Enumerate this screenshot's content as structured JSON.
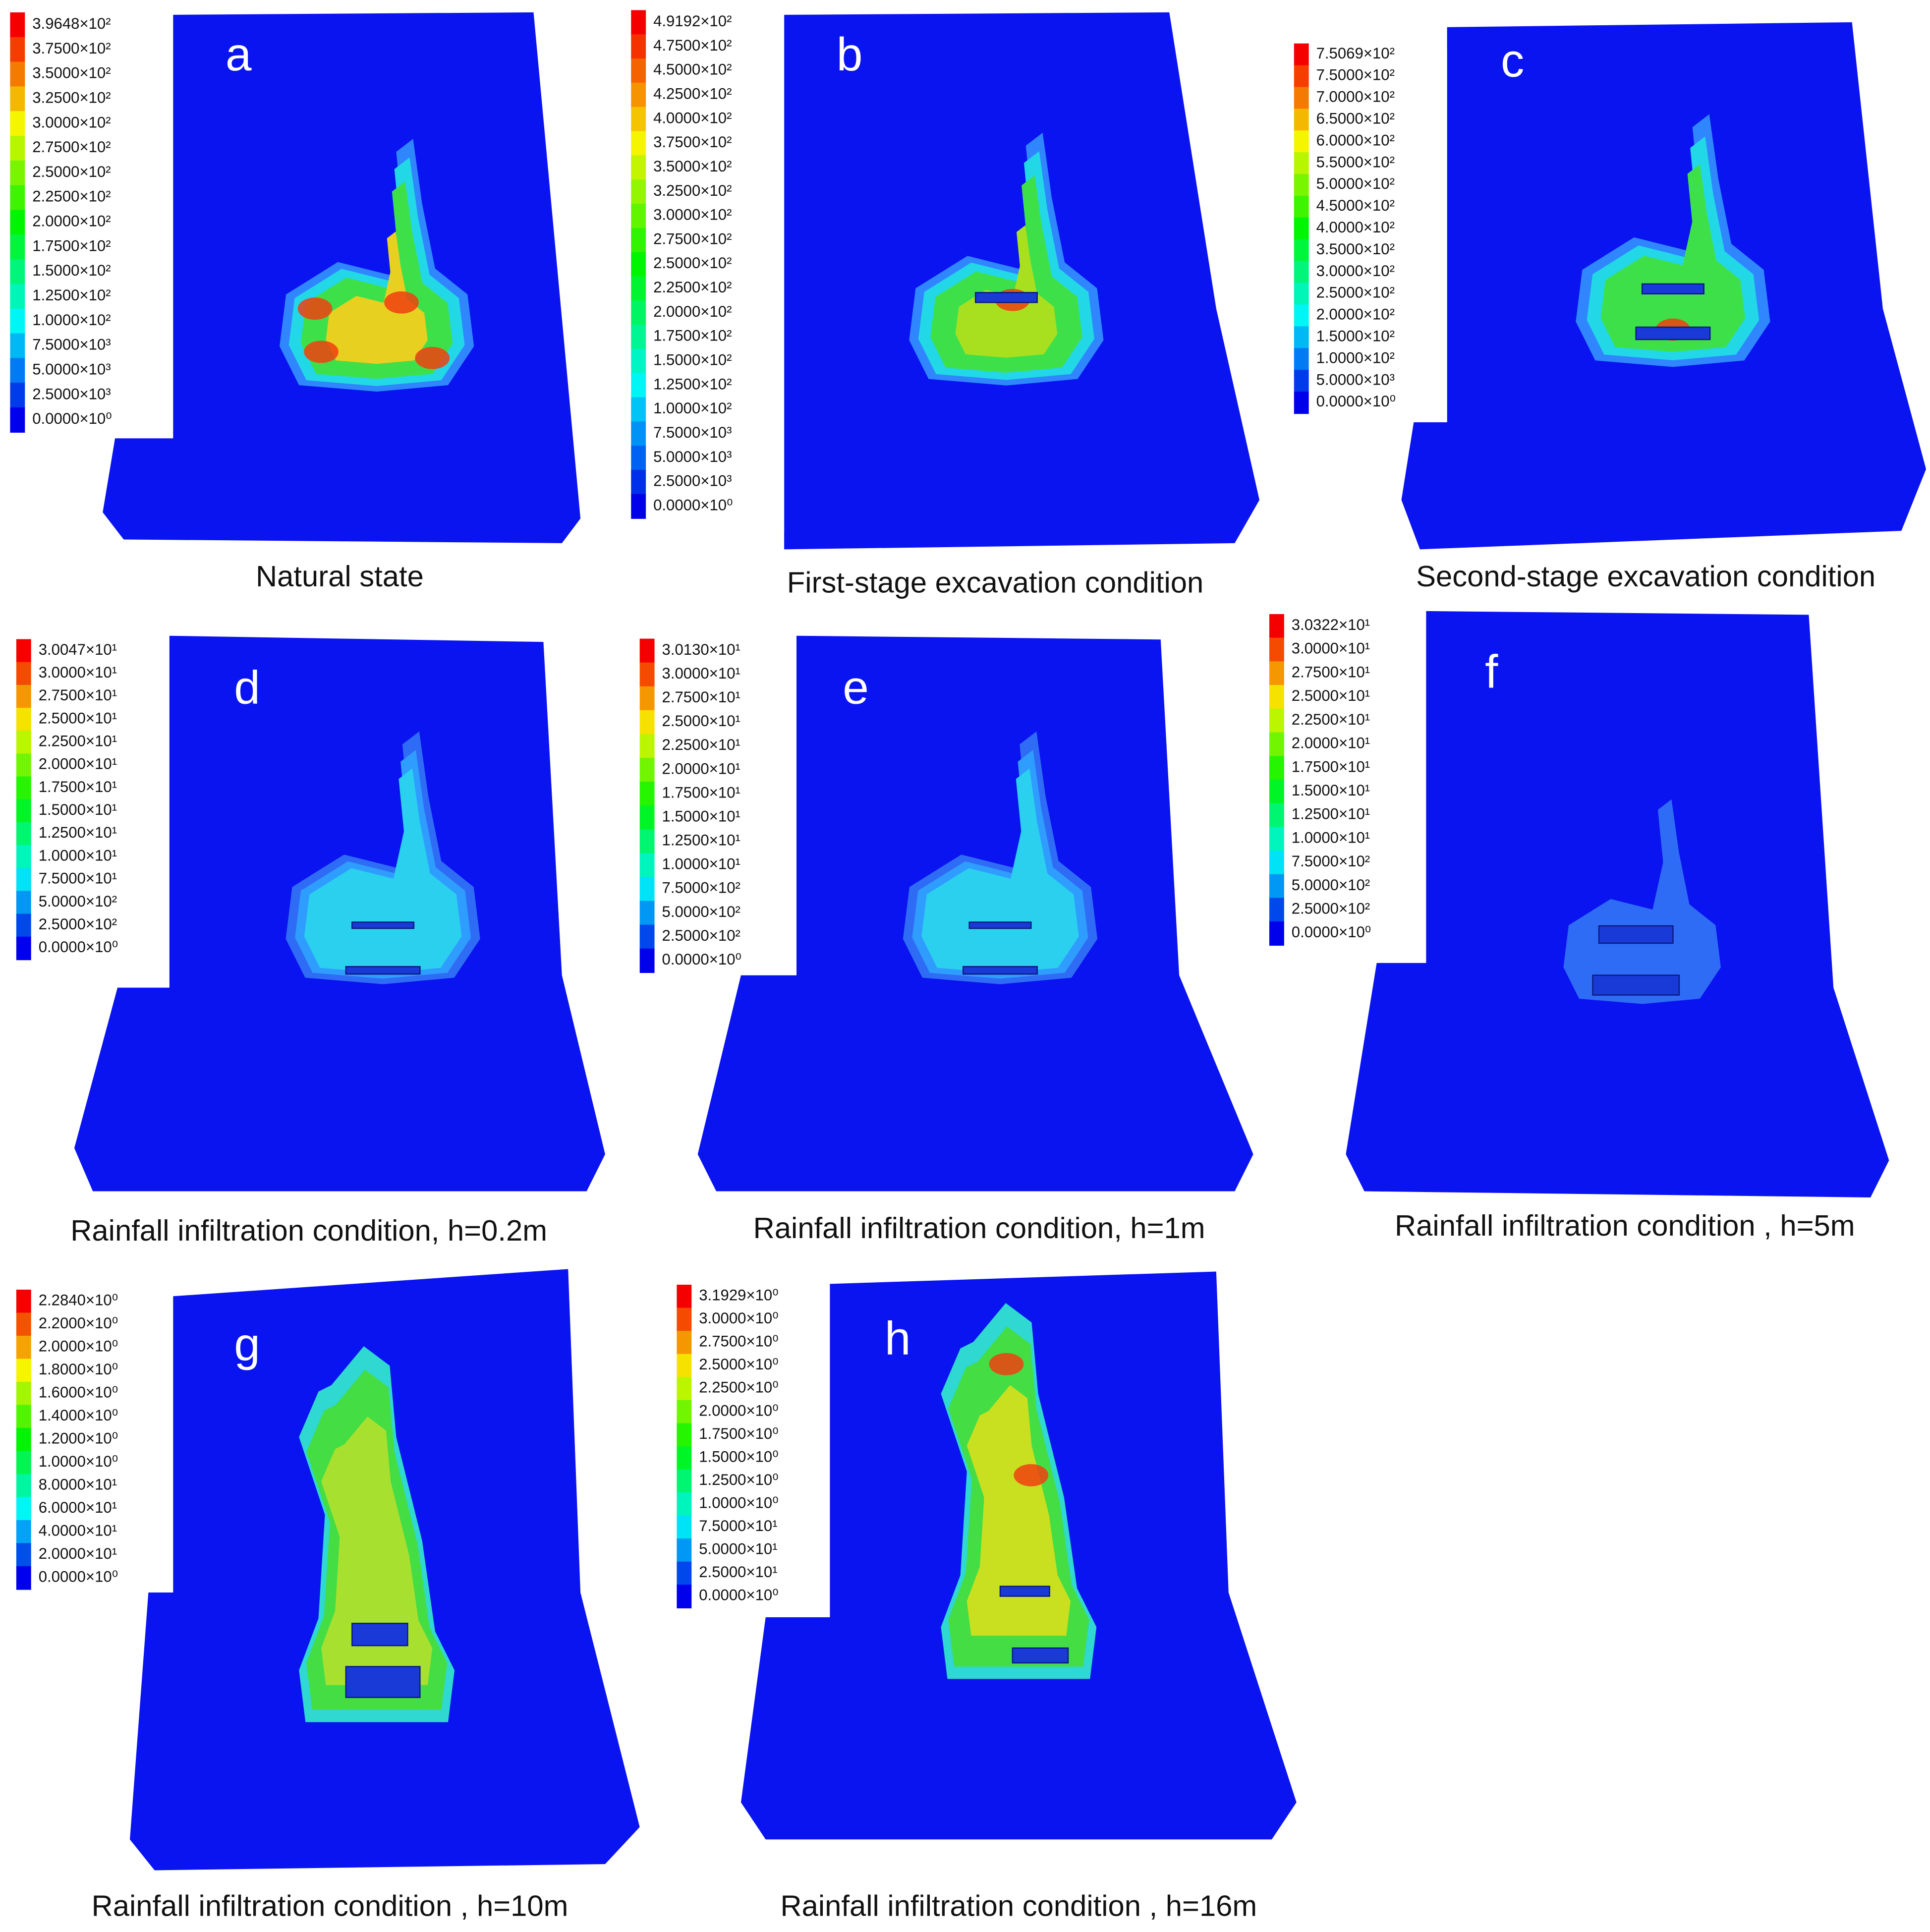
{
  "panels": [
    {
      "letter": "a",
      "caption": "Natural state",
      "legend": [
        "3.9648×10²",
        "3.7500×10²",
        "3.5000×10²",
        "3.2500×10²",
        "3.0000×10²",
        "2.7500×10²",
        "2.5000×10²",
        "2.2500×10²",
        "2.0000×10²",
        "1.7500×10²",
        "1.5000×10²",
        "1.2500×10²",
        "1.0000×10²",
        "7.5000×10³",
        "5.0000×10³",
        "2.5000×10³",
        "0.0000×10⁰"
      ]
    },
    {
      "letter": "b",
      "caption": "First-stage excavation condition",
      "legend": [
        "4.9192×10²",
        "4.7500×10²",
        "4.5000×10²",
        "4.2500×10²",
        "4.0000×10²",
        "3.7500×10²",
        "3.5000×10²",
        "3.2500×10²",
        "3.0000×10²",
        "2.7500×10²",
        "2.5000×10²",
        "2.2500×10²",
        "2.0000×10²",
        "1.7500×10²",
        "1.5000×10²",
        "1.2500×10²",
        "1.0000×10²",
        "7.5000×10³",
        "5.0000×10³",
        "2.5000×10³",
        "0.0000×10⁰"
      ]
    },
    {
      "letter": "c",
      "caption": "Second-stage excavation condition",
      "legend": [
        "7.5069×10²",
        "7.5000×10²",
        "7.0000×10²",
        "6.5000×10²",
        "6.0000×10²",
        "5.5000×10²",
        "5.0000×10²",
        "4.5000×10²",
        "4.0000×10²",
        "3.5000×10²",
        "3.0000×10²",
        "2.5000×10²",
        "2.0000×10²",
        "1.5000×10²",
        "1.0000×10²",
        "5.0000×10³",
        "0.0000×10⁰"
      ]
    },
    {
      "letter": "d",
      "caption": "Rainfall infiltration condition, h=0.2m",
      "legend": [
        "3.0047×10¹",
        "3.0000×10¹",
        "2.7500×10¹",
        "2.5000×10¹",
        "2.2500×10¹",
        "2.0000×10¹",
        "1.7500×10¹",
        "1.5000×10¹",
        "1.2500×10¹",
        "1.0000×10¹",
        "7.5000×10¹",
        "5.0000×10²",
        "2.5000×10²",
        "0.0000×10⁰"
      ]
    },
    {
      "letter": "e",
      "caption": "Rainfall infiltration condition, h=1m",
      "legend": [
        "3.0130×10¹",
        "3.0000×10¹",
        "2.7500×10¹",
        "2.5000×10¹",
        "2.2500×10¹",
        "2.0000×10¹",
        "1.7500×10¹",
        "1.5000×10¹",
        "1.2500×10¹",
        "1.0000×10¹",
        "7.5000×10²",
        "5.0000×10²",
        "2.5000×10²",
        "0.0000×10⁰"
      ]
    },
    {
      "letter": "f",
      "caption": "Rainfall infiltration condition , h=5m",
      "legend": [
        "3.0322×10¹",
        "3.0000×10¹",
        "2.7500×10¹",
        "2.5000×10¹",
        "2.2500×10¹",
        "2.0000×10¹",
        "1.7500×10¹",
        "1.5000×10¹",
        "1.2500×10¹",
        "1.0000×10¹",
        "7.5000×10²",
        "5.0000×10²",
        "2.5000×10²",
        "0.0000×10⁰"
      ]
    },
    {
      "letter": "g",
      "caption": "Rainfall infiltration condition , h=10m",
      "legend": [
        "2.2840×10⁰",
        "2.2000×10⁰",
        "2.0000×10⁰",
        "1.8000×10⁰",
        "1.6000×10⁰",
        "1.4000×10⁰",
        "1.2000×10⁰",
        "1.0000×10⁰",
        "8.0000×10¹",
        "6.0000×10¹",
        "4.0000×10¹",
        "2.0000×10¹",
        "0.0000×10⁰"
      ]
    },
    {
      "letter": "h",
      "caption": "Rainfall infiltration condition , h=16m",
      "legend": [
        "3.1929×10⁰",
        "3.0000×10⁰",
        "2.7500×10⁰",
        "2.5000×10⁰",
        "2.2500×10⁰",
        "2.0000×10⁰",
        "1.7500×10⁰",
        "1.5000×10⁰",
        "1.2500×10⁰",
        "1.0000×10⁰",
        "7.5000×10¹",
        "5.0000×10¹",
        "2.5000×10¹",
        "0.0000×10⁰"
      ]
    }
  ]
}
